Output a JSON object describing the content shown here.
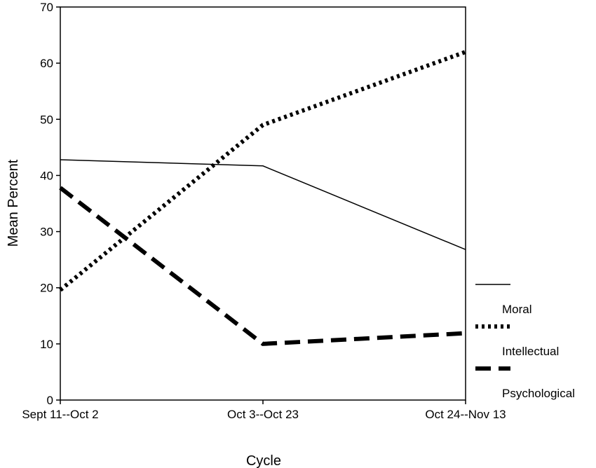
{
  "chart_data": {
    "type": "line",
    "title": "",
    "xlabel": "Cycle",
    "ylabel": "Mean Percent",
    "categories": [
      "Sept 11--Oct 2",
      "Oct 3--Oct 23",
      "Oct 24--Nov 13"
    ],
    "ylim": [
      0,
      70
    ],
    "yticks": [
      0,
      10,
      20,
      30,
      40,
      50,
      60,
      70
    ],
    "grid": false,
    "legend_position": "right",
    "series": [
      {
        "name": "Moral",
        "style": "solid",
        "color": "#000000",
        "values": [
          42.8,
          41.7,
          26.8
        ]
      },
      {
        "name": "Intellectual",
        "style": "dotted",
        "color": "#000000",
        "values": [
          19.6,
          49.0,
          62.0
        ]
      },
      {
        "name": "Psychological",
        "style": "dashed",
        "color": "#000000",
        "values": [
          37.8,
          10.0,
          11.9
        ]
      }
    ]
  }
}
